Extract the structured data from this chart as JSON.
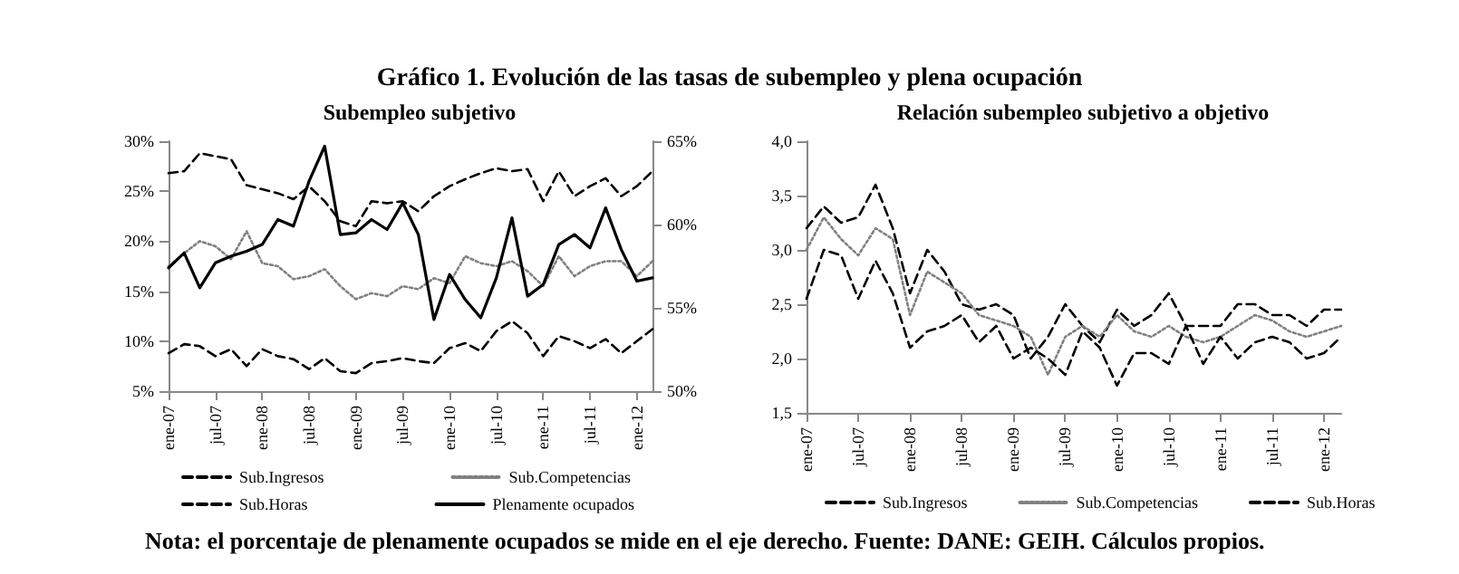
{
  "chart_data": [
    {
      "type": "line",
      "title": "Gráfico 1. Evolución de las tasas de subempleo y plena ocupación",
      "subtitle": "Subempleo subjetivo",
      "annotations": [
        "Nota: el porcentaje de plenamente ocupados se mide en el eje derecho. Fuente: DANE: GEIH. Cálculos propios."
      ],
      "categories": [
        "ene-07",
        null,
        null,
        "jul-07",
        null,
        null,
        "ene-08",
        null,
        null,
        "jul-08",
        null,
        null,
        "ene-09",
        null,
        null,
        "jul-09",
        null,
        null,
        "ene-10",
        null,
        null,
        "jul-10",
        null,
        null,
        "ene-11",
        null,
        null,
        "jul-11",
        null,
        null,
        "ene-12",
        null
      ],
      "series": [
        {
          "name": "Sub.Ingresos",
          "color": "#000000",
          "line_style": "dashed",
          "values": [
            26.8,
            27.0,
            28.8,
            28.5,
            28.2,
            25.6,
            25.2,
            24.8,
            24.2,
            25.5,
            24.0,
            22.0,
            21.5,
            24.0,
            23.8,
            24.0,
            23.0,
            24.5,
            25.5,
            26.2,
            26.8,
            27.3,
            27.0,
            27.2,
            24.0,
            27.0,
            24.5,
            25.5,
            26.3,
            24.5,
            25.5,
            27.0
          ]
        },
        {
          "name": "Sub.Competencias",
          "color": "#808080",
          "line_style": "dotted",
          "values": [
            17.5,
            18.8,
            20.0,
            19.5,
            18.2,
            21.0,
            17.8,
            17.5,
            16.2,
            16.5,
            17.2,
            15.5,
            14.2,
            14.8,
            14.5,
            15.5,
            15.2,
            16.3,
            15.8,
            18.5,
            17.8,
            17.5,
            18.0,
            17.0,
            15.5,
            18.5,
            16.5,
            17.5,
            18.0,
            18.0,
            16.5,
            18.0
          ]
        },
        {
          "name": "Sub.Horas",
          "color": "#000000",
          "line_style": "dashed",
          "values": [
            8.8,
            9.7,
            9.5,
            8.5,
            9.2,
            7.5,
            9.2,
            8.5,
            8.2,
            7.2,
            8.3,
            7.0,
            6.8,
            7.8,
            8.0,
            8.3,
            8.0,
            7.8,
            9.3,
            9.8,
            9.0,
            11.0,
            12.0,
            10.8,
            8.5,
            10.5,
            10.0,
            9.3,
            10.2,
            8.8,
            10.0,
            11.2
          ]
        },
        {
          "name": "Plenamente ocupados",
          "color": "#000000",
          "line_style": "solid",
          "axis": "y2",
          "values": [
            57.4,
            58.3,
            56.2,
            57.7,
            58.1,
            58.4,
            58.8,
            60.3,
            59.9,
            62.6,
            64.7,
            59.4,
            59.5,
            60.3,
            59.7,
            61.3,
            59.4,
            54.3,
            57.0,
            55.5,
            54.4,
            56.8,
            60.4,
            55.7,
            56.4,
            58.8,
            59.4,
            58.6,
            61.0,
            58.5,
            56.6,
            56.8
          ]
        }
      ],
      "ylim": [
        5,
        30
      ],
      "yticks": [
        {
          "value": 5,
          "label": "5%"
        },
        {
          "value": 10,
          "label": "10%"
        },
        {
          "value": 15,
          "label": "15%"
        },
        {
          "value": 20,
          "label": "20%"
        },
        {
          "value": 25,
          "label": "25%"
        },
        {
          "value": 30,
          "label": "30%"
        }
      ],
      "y2lim": [
        50,
        65
      ],
      "y2ticks": [
        {
          "value": 50,
          "label": "50%"
        },
        {
          "value": 55,
          "label": "55%"
        },
        {
          "value": 60,
          "label": "60%"
        },
        {
          "value": 65,
          "label": "65%"
        }
      ],
      "grid": false,
      "legend": "bottom",
      "marker": "none"
    },
    {
      "type": "line",
      "title": "Relación subempleo subjetivo a objetivo",
      "categories": [
        "ene-07",
        null,
        null,
        "jul-07",
        null,
        null,
        "ene-08",
        null,
        null,
        "jul-08",
        null,
        null,
        "ene-09",
        null,
        null,
        "jul-09",
        null,
        null,
        "ene-10",
        null,
        null,
        "jul-10",
        null,
        null,
        "ene-11",
        null,
        null,
        "jul-11",
        null,
        null,
        "ene-12",
        null
      ],
      "series": [
        {
          "name": "Sub.Ingresos",
          "color": "#000000",
          "line_style": "dashed",
          "values": [
            3.2,
            3.4,
            3.25,
            3.3,
            3.6,
            3.2,
            2.6,
            3.0,
            2.8,
            2.5,
            2.45,
            2.5,
            2.4,
            2.0,
            2.2,
            2.5,
            2.3,
            2.15,
            2.45,
            2.3,
            2.4,
            2.6,
            2.3,
            2.3,
            2.3,
            2.5,
            2.5,
            2.4,
            2.4,
            2.3,
            2.45,
            2.45
          ]
        },
        {
          "name": "Sub.Competencias",
          "color": "#808080",
          "line_style": "dotted",
          "values": [
            3.0,
            3.3,
            3.1,
            2.95,
            3.2,
            3.1,
            2.4,
            2.8,
            2.7,
            2.6,
            2.4,
            2.35,
            2.3,
            2.2,
            1.85,
            2.2,
            2.3,
            2.2,
            2.4,
            2.25,
            2.2,
            2.3,
            2.2,
            2.15,
            2.2,
            2.3,
            2.4,
            2.35,
            2.25,
            2.2,
            2.25,
            2.3
          ]
        },
        {
          "name": "Sub.Horas",
          "color": "#000000",
          "line_style": "dashed",
          "values": [
            2.55,
            3.0,
            2.95,
            2.55,
            2.9,
            2.6,
            2.1,
            2.25,
            2.3,
            2.4,
            2.15,
            2.3,
            2.0,
            2.1,
            2.0,
            1.85,
            2.25,
            2.1,
            1.75,
            2.05,
            2.05,
            1.95,
            2.3,
            1.95,
            2.2,
            2.0,
            2.15,
            2.2,
            2.15,
            2.0,
            2.05,
            2.2
          ]
        }
      ],
      "ylim": [
        1.5,
        4
      ],
      "yticks": [
        {
          "value": 1.5,
          "label": "1,5"
        },
        {
          "value": 2,
          "label": "2,0"
        },
        {
          "value": 2.5,
          "label": "2,5"
        },
        {
          "value": 3,
          "label": "3,0"
        },
        {
          "value": 3.5,
          "label": "3,5"
        },
        {
          "value": 4,
          "label": "4,0"
        }
      ],
      "grid": false,
      "legend": "bottom",
      "marker": "none"
    }
  ]
}
